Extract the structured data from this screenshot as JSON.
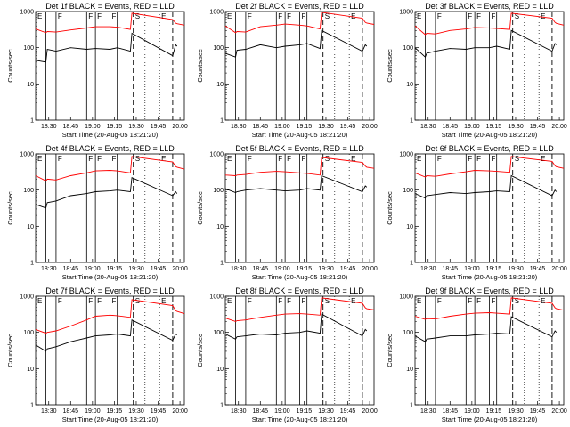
{
  "figure": {
    "x_tick_labels": [
      "18:30",
      "18:45",
      "19:00",
      "19:15",
      "19:30",
      "19:45",
      "20:00"
    ],
    "y_tick_labels": [
      "1",
      "10",
      "100",
      "1000"
    ],
    "ylabel": "Counts/sec",
    "xlabel": "Start Time (20-Aug-05 18:21:20)",
    "colors": {
      "events": "#000000",
      "lld": "#ff0000",
      "axes": "#000000"
    }
  },
  "chart_data": [
    {
      "type": "line",
      "title": "Det 1f BLACK = Events, RED = LLD",
      "xlabel": "Start Time (20-Aug-05 18:21:20)",
      "ylabel": "Counts/sec",
      "y_scale": "log",
      "ylim": [
        1,
        1000
      ],
      "xlim": [
        "18:21",
        "20:03"
      ],
      "vertical_solid_lines": [
        "18:28",
        "18:35",
        "18:56",
        "19:02",
        "19:12",
        "19:17"
      ],
      "vertical_dashed_lines": [
        "19:28",
        "19:55"
      ],
      "vertical_dotted_lines": [
        "19:36",
        "19:46"
      ],
      "marker_labels": [
        "E",
        "F",
        "F",
        "F",
        "F",
        "S",
        "E"
      ],
      "series": [
        {
          "name": "Events",
          "color": "#000000",
          "x": [
            "18:21",
            "18:28",
            "18:29",
            "18:35",
            "18:45",
            "18:56",
            "19:02",
            "19:12",
            "19:17",
            "19:26",
            "19:27",
            "19:55",
            "19:57",
            "19:58"
          ],
          "y": [
            45,
            40,
            90,
            80,
            100,
            90,
            95,
            90,
            100,
            80,
            250,
            60,
            120,
            110
          ]
        },
        {
          "name": "LLD",
          "color": "#ff0000",
          "x": [
            "18:21",
            "18:28",
            "18:29",
            "18:35",
            "18:45",
            "18:56",
            "19:02",
            "19:12",
            "19:17",
            "19:26",
            "19:27",
            "19:55",
            "19:57",
            "19:58",
            "20:03"
          ],
          "y": [
            330,
            260,
            280,
            270,
            310,
            350,
            380,
            380,
            370,
            320,
            900,
            600,
            480,
            460,
            420
          ]
        }
      ]
    },
    {
      "type": "line",
      "title": "Det 2f BLACK = Events, RED = LLD",
      "xlabel": "Start Time (20-Aug-05 18:21:20)",
      "ylabel": "Counts/sec",
      "y_scale": "log",
      "ylim": [
        1,
        1000
      ],
      "xlim": [
        "18:21",
        "20:03"
      ],
      "vertical_solid_lines": [
        "18:28",
        "18:35",
        "18:56",
        "19:02",
        "19:12",
        "19:17"
      ],
      "vertical_dashed_lines": [
        "19:28",
        "19:55"
      ],
      "vertical_dotted_lines": [
        "19:36",
        "19:46"
      ],
      "marker_labels": [
        "E",
        "F",
        "F",
        "F",
        "F",
        "S",
        "E"
      ],
      "series": [
        {
          "name": "Events",
          "color": "#000000",
          "x": [
            "18:21",
            "18:28",
            "18:29",
            "18:35",
            "18:45",
            "18:56",
            "19:02",
            "19:12",
            "19:17",
            "19:26",
            "19:27",
            "19:55",
            "19:57",
            "19:58"
          ],
          "y": [
            70,
            55,
            85,
            90,
            120,
            100,
            110,
            120,
            130,
            95,
            300,
            80,
            120,
            110
          ]
        },
        {
          "name": "LLD",
          "color": "#ff0000",
          "x": [
            "18:21",
            "18:28",
            "18:29",
            "18:35",
            "18:45",
            "18:56",
            "19:02",
            "19:12",
            "19:17",
            "19:26",
            "19:27",
            "19:55",
            "19:57",
            "19:58",
            "20:03"
          ],
          "y": [
            400,
            260,
            280,
            270,
            380,
            420,
            450,
            420,
            400,
            330,
            950,
            650,
            500,
            480,
            440
          ]
        }
      ]
    },
    {
      "type": "line",
      "title": "Det 3f BLACK = Events, RED = LLD",
      "xlabel": "Start Time (20-Aug-05 18:21:20)",
      "ylabel": "Counts/sec",
      "y_scale": "log",
      "ylim": [
        1,
        1000
      ],
      "xlim": [
        "18:21",
        "20:03"
      ],
      "vertical_solid_lines": [
        "18:28",
        "18:35",
        "18:56",
        "19:02",
        "19:12",
        "19:17"
      ],
      "vertical_dashed_lines": [
        "19:28",
        "19:55"
      ],
      "vertical_dotted_lines": [
        "19:36",
        "19:46"
      ],
      "marker_labels": [
        "E",
        "F",
        "F",
        "F",
        "F",
        "S",
        "E"
      ],
      "series": [
        {
          "name": "Events",
          "color": "#000000",
          "x": [
            "18:21",
            "18:28",
            "18:29",
            "18:35",
            "18:45",
            "18:56",
            "19:02",
            "19:12",
            "19:17",
            "19:26",
            "19:27",
            "19:55",
            "19:57",
            "19:58"
          ],
          "y": [
            100,
            55,
            70,
            80,
            95,
            90,
            100,
            100,
            110,
            90,
            300,
            80,
            130,
            120
          ]
        },
        {
          "name": "LLD",
          "color": "#ff0000",
          "x": [
            "18:21",
            "18:28",
            "18:29",
            "18:35",
            "18:45",
            "18:56",
            "19:02",
            "19:12",
            "19:17",
            "19:26",
            "19:27",
            "19:55",
            "19:57",
            "19:58",
            "20:03"
          ],
          "y": [
            400,
            230,
            250,
            240,
            300,
            330,
            360,
            350,
            340,
            320,
            900,
            650,
            500,
            470,
            420
          ]
        }
      ]
    },
    {
      "type": "line",
      "title": "Det 4f BLACK = Events, RED = LLD",
      "xlabel": "Start Time (20-Aug-05 18:21:20)",
      "ylabel": "Counts/sec",
      "y_scale": "log",
      "ylim": [
        1,
        1000
      ],
      "xlim": [
        "18:21",
        "20:03"
      ],
      "vertical_solid_lines": [
        "18:28",
        "18:35",
        "18:56",
        "19:02",
        "19:12",
        "19:17"
      ],
      "vertical_dashed_lines": [
        "19:28",
        "19:55"
      ],
      "vertical_dotted_lines": [
        "19:36",
        "19:46"
      ],
      "marker_labels": [
        "E",
        "F",
        "F",
        "F",
        "F",
        "S",
        "E"
      ],
      "series": [
        {
          "name": "Events",
          "color": "#000000",
          "x": [
            "18:21",
            "18:28",
            "18:29",
            "18:35",
            "18:45",
            "18:56",
            "19:02",
            "19:12",
            "19:17",
            "19:26",
            "19:27",
            "19:55",
            "19:57",
            "19:58"
          ],
          "y": [
            40,
            32,
            45,
            50,
            70,
            80,
            90,
            95,
            100,
            90,
            220,
            70,
            90,
            80
          ]
        },
        {
          "name": "LLD",
          "color": "#ff0000",
          "x": [
            "18:21",
            "18:28",
            "18:29",
            "18:35",
            "18:45",
            "18:56",
            "19:02",
            "19:12",
            "19:17",
            "19:26",
            "19:27",
            "19:55",
            "19:57",
            "19:58",
            "20:03"
          ],
          "y": [
            250,
            180,
            200,
            190,
            250,
            300,
            340,
            350,
            340,
            300,
            850,
            600,
            450,
            430,
            380
          ]
        }
      ]
    },
    {
      "type": "line",
      "title": "Det 5f BLACK = Events, RED = LLD",
      "xlabel": "Start Time (20-Aug-05 18:21:20)",
      "ylabel": "Counts/sec",
      "y_scale": "log",
      "ylim": [
        1,
        1000
      ],
      "xlim": [
        "18:21",
        "20:03"
      ],
      "vertical_solid_lines": [
        "18:28",
        "18:35",
        "18:56",
        "19:02",
        "19:12",
        "19:17"
      ],
      "vertical_dashed_lines": [
        "19:28",
        "19:55"
      ],
      "vertical_dotted_lines": [
        "19:36",
        "19:46"
      ],
      "marker_labels": [
        "E",
        "F",
        "F",
        "F",
        "F",
        "S",
        "E"
      ],
      "series": [
        {
          "name": "Events",
          "color": "#000000",
          "x": [
            "18:21",
            "18:28",
            "18:29",
            "18:35",
            "18:45",
            "18:56",
            "19:02",
            "19:12",
            "19:17",
            "19:26",
            "19:27",
            "19:55",
            "19:57",
            "19:58"
          ],
          "y": [
            110,
            85,
            90,
            100,
            110,
            100,
            95,
            100,
            110,
            100,
            250,
            90,
            130,
            120
          ]
        },
        {
          "name": "LLD",
          "color": "#ff0000",
          "x": [
            "18:21",
            "18:28",
            "18:29",
            "18:35",
            "18:45",
            "18:56",
            "19:02",
            "19:12",
            "19:17",
            "19:26",
            "19:27",
            "19:55",
            "19:57",
            "19:58",
            "20:03"
          ],
          "y": [
            260,
            250,
            260,
            270,
            310,
            330,
            320,
            300,
            290,
            260,
            800,
            580,
            460,
            430,
            400
          ]
        }
      ]
    },
    {
      "type": "line",
      "title": "Det 6f BLACK = Events, RED = LLD",
      "xlabel": "Start Time (20-Aug-05 18:21:20)",
      "ylabel": "Counts/sec",
      "y_scale": "log",
      "ylim": [
        1,
        1000
      ],
      "xlim": [
        "18:21",
        "20:03"
      ],
      "vertical_solid_lines": [
        "18:28",
        "18:35",
        "18:56",
        "19:02",
        "19:12",
        "19:17"
      ],
      "vertical_dashed_lines": [
        "19:28",
        "19:55"
      ],
      "vertical_dotted_lines": [
        "19:36",
        "19:46"
      ],
      "marker_labels": [
        "E",
        "F",
        "F",
        "F",
        "F",
        "S",
        "E"
      ],
      "series": [
        {
          "name": "Events",
          "color": "#000000",
          "x": [
            "18:21",
            "18:28",
            "18:29",
            "18:35",
            "18:45",
            "18:56",
            "19:02",
            "19:12",
            "19:17",
            "19:26",
            "19:27",
            "19:55",
            "19:57",
            "19:58"
          ],
          "y": [
            80,
            60,
            70,
            75,
            85,
            80,
            85,
            90,
            95,
            90,
            250,
            70,
            100,
            90
          ]
        },
        {
          "name": "LLD",
          "color": "#ff0000",
          "x": [
            "18:21",
            "18:28",
            "18:29",
            "18:35",
            "18:45",
            "18:56",
            "19:02",
            "19:12",
            "19:17",
            "19:26",
            "19:27",
            "19:55",
            "19:57",
            "19:58",
            "20:03"
          ],
          "y": [
            300,
            230,
            250,
            240,
            280,
            320,
            350,
            340,
            330,
            310,
            850,
            620,
            470,
            440,
            400
          ]
        }
      ]
    },
    {
      "type": "line",
      "title": "Det 7f BLACK = Events, RED = LLD",
      "xlabel": "Start Time (20-Aug-05 18:21:20)",
      "ylabel": "Counts/sec",
      "y_scale": "log",
      "ylim": [
        1,
        1000
      ],
      "xlim": [
        "18:21",
        "20:03"
      ],
      "vertical_solid_lines": [
        "18:28",
        "18:35",
        "18:56",
        "19:02",
        "19:12",
        "19:17"
      ],
      "vertical_dashed_lines": [
        "19:28",
        "19:55"
      ],
      "vertical_dotted_lines": [
        "19:36",
        "19:46"
      ],
      "marker_labels": [
        "E",
        "F",
        "F",
        "F",
        "F",
        "S",
        "E"
      ],
      "series": [
        {
          "name": "Events",
          "color": "#000000",
          "x": [
            "18:21",
            "18:28",
            "18:29",
            "18:35",
            "18:45",
            "18:56",
            "19:02",
            "19:12",
            "19:17",
            "19:26",
            "19:27",
            "19:55",
            "19:57",
            "19:58"
          ],
          "y": [
            45,
            30,
            35,
            40,
            55,
            70,
            80,
            85,
            90,
            80,
            220,
            60,
            90,
            85
          ]
        },
        {
          "name": "LLD",
          "color": "#ff0000",
          "x": [
            "18:21",
            "18:28",
            "18:29",
            "18:35",
            "18:45",
            "18:56",
            "19:02",
            "19:12",
            "19:17",
            "19:26",
            "19:27",
            "19:55",
            "19:57",
            "19:58",
            "20:03"
          ],
          "y": [
            120,
            95,
            100,
            110,
            150,
            220,
            280,
            300,
            290,
            260,
            800,
            550,
            400,
            380,
            330
          ]
        }
      ]
    },
    {
      "type": "line",
      "title": "Det 8f BLACK = Events, RED = LLD",
      "xlabel": "Start Time (20-Aug-05 18:21:20)",
      "ylabel": "Counts/sec",
      "y_scale": "log",
      "ylim": [
        1,
        1000
      ],
      "xlim": [
        "18:21",
        "20:03"
      ],
      "vertical_solid_lines": [
        "18:28",
        "18:35",
        "18:56",
        "19:02",
        "19:12",
        "19:17"
      ],
      "vertical_dashed_lines": [
        "19:28",
        "19:55"
      ],
      "vertical_dotted_lines": [
        "19:36",
        "19:46"
      ],
      "marker_labels": [
        "E",
        "F",
        "F",
        "F",
        "F",
        "S",
        "E"
      ],
      "series": [
        {
          "name": "Events",
          "color": "#000000",
          "x": [
            "18:21",
            "18:28",
            "18:29",
            "18:35",
            "18:45",
            "18:56",
            "19:02",
            "19:12",
            "19:17",
            "19:26",
            "19:27",
            "19:55",
            "19:57",
            "19:58"
          ],
          "y": [
            90,
            65,
            75,
            80,
            90,
            85,
            95,
            100,
            110,
            95,
            320,
            80,
            120,
            110
          ]
        },
        {
          "name": "LLD",
          "color": "#ff0000",
          "x": [
            "18:21",
            "18:28",
            "18:29",
            "18:35",
            "18:45",
            "18:56",
            "19:02",
            "19:12",
            "19:17",
            "19:26",
            "19:27",
            "19:55",
            "19:57",
            "19:58",
            "20:03"
          ],
          "y": [
            250,
            200,
            210,
            220,
            260,
            300,
            320,
            330,
            320,
            300,
            900,
            640,
            480,
            450,
            420
          ]
        }
      ]
    },
    {
      "type": "line",
      "title": "Det 9f BLACK = Events, RED = LLD",
      "xlabel": "Start Time (20-Aug-05 18:21:20)",
      "ylabel": "Counts/sec",
      "y_scale": "log",
      "ylim": [
        1,
        1000
      ],
      "xlim": [
        "18:21",
        "20:03"
      ],
      "vertical_solid_lines": [
        "18:28",
        "18:35",
        "18:56",
        "19:02",
        "19:12",
        "19:17"
      ],
      "vertical_dashed_lines": [
        "19:28",
        "19:55"
      ],
      "vertical_dotted_lines": [
        "19:36",
        "19:46"
      ],
      "marker_labels": [
        "E",
        "F",
        "F",
        "F",
        "F",
        "S",
        "E"
      ],
      "series": [
        {
          "name": "Events",
          "color": "#000000",
          "x": [
            "18:21",
            "18:28",
            "18:29",
            "18:35",
            "18:45",
            "18:56",
            "19:02",
            "19:12",
            "19:17",
            "19:26",
            "19:27",
            "19:55",
            "19:57",
            "19:58"
          ],
          "y": [
            80,
            55,
            65,
            70,
            80,
            80,
            85,
            90,
            95,
            90,
            270,
            75,
            110,
            100
          ]
        },
        {
          "name": "LLD",
          "color": "#ff0000",
          "x": [
            "18:21",
            "18:28",
            "18:29",
            "18:35",
            "18:45",
            "18:56",
            "19:02",
            "19:12",
            "19:17",
            "19:26",
            "19:27",
            "19:55",
            "19:57",
            "19:58",
            "20:03"
          ],
          "y": [
            280,
            230,
            240,
            235,
            280,
            320,
            340,
            350,
            340,
            320,
            900,
            640,
            480,
            450,
            410
          ]
        }
      ]
    }
  ]
}
